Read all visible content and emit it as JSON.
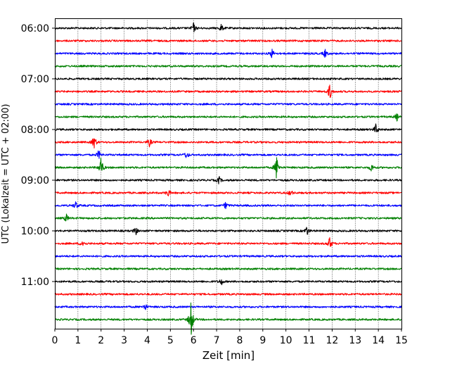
{
  "chart_data": {
    "type": "line",
    "title": "",
    "xlabel": "Zeit  [min]",
    "ylabel": "UTC (Lokalzeit = UTC + 02:00)",
    "xlim": [
      0,
      15
    ],
    "x_ticks": [
      "0",
      "1",
      "2",
      "3",
      "4",
      "5",
      "6",
      "7",
      "8",
      "9",
      "10",
      "11",
      "12",
      "13",
      "14",
      "15"
    ],
    "y_ticks": [
      "06:00",
      "07:00",
      "08:00",
      "09:00",
      "10:00",
      "11:00"
    ],
    "grid": "vertical dotted",
    "colors": [
      "#000000",
      "#ff0000",
      "#0000ff",
      "#008000"
    ],
    "series": [
      {
        "start": "06:00",
        "color": "#000000",
        "events": [
          {
            "x": 6.0,
            "amp": 2.0
          },
          {
            "x": 7.2,
            "amp": 1.5
          }
        ]
      },
      {
        "start": "06:15",
        "color": "#ff0000",
        "events": []
      },
      {
        "start": "06:30",
        "color": "#0000ff",
        "events": [
          {
            "x": 9.4,
            "amp": 1.8
          },
          {
            "x": 11.7,
            "amp": 1.6
          }
        ]
      },
      {
        "start": "06:45",
        "color": "#008000",
        "events": []
      },
      {
        "start": "07:00",
        "color": "#000000",
        "events": []
      },
      {
        "start": "07:15",
        "color": "#ff0000",
        "events": [
          {
            "x": 11.9,
            "amp": 3.2
          }
        ]
      },
      {
        "start": "07:30",
        "color": "#0000ff",
        "events": []
      },
      {
        "start": "07:45",
        "color": "#008000",
        "events": [
          {
            "x": 14.8,
            "amp": 1.5
          }
        ]
      },
      {
        "start": "08:00",
        "color": "#000000",
        "events": [
          {
            "x": 13.9,
            "amp": 2.2
          }
        ]
      },
      {
        "start": "08:15",
        "color": "#ff0000",
        "events": [
          {
            "x": 1.7,
            "amp": 3.0
          },
          {
            "x": 4.1,
            "amp": 1.6
          }
        ]
      },
      {
        "start": "08:30",
        "color": "#0000ff",
        "events": [
          {
            "x": 1.9,
            "amp": 1.8
          },
          {
            "x": 5.7,
            "amp": 1.5
          }
        ]
      },
      {
        "start": "08:45",
        "color": "#008000",
        "events": [
          {
            "x": 2.0,
            "amp": 4.5
          },
          {
            "x": 9.6,
            "amp": 5.0
          },
          {
            "x": 13.7,
            "amp": 1.6
          }
        ]
      },
      {
        "start": "09:00",
        "color": "#000000",
        "events": [
          {
            "x": 7.1,
            "amp": 1.5
          }
        ]
      },
      {
        "start": "09:15",
        "color": "#ff0000",
        "events": [
          {
            "x": 4.9,
            "amp": 1.6
          },
          {
            "x": 10.2,
            "amp": 1.4
          }
        ]
      },
      {
        "start": "09:30",
        "color": "#0000ff",
        "events": [
          {
            "x": 0.9,
            "amp": 1.6
          },
          {
            "x": 7.4,
            "amp": 1.4
          }
        ]
      },
      {
        "start": "09:45",
        "color": "#008000",
        "events": [
          {
            "x": 0.5,
            "amp": 1.6
          }
        ]
      },
      {
        "start": "10:00",
        "color": "#000000",
        "events": [
          {
            "x": 3.5,
            "amp": 1.6
          },
          {
            "x": 10.9,
            "amp": 2.0
          }
        ]
      },
      {
        "start": "10:15",
        "color": "#ff0000",
        "events": [
          {
            "x": 1.2,
            "amp": 1.6
          },
          {
            "x": 11.9,
            "amp": 2.6
          }
        ]
      },
      {
        "start": "10:30",
        "color": "#0000ff",
        "events": []
      },
      {
        "start": "10:45",
        "color": "#008000",
        "events": []
      },
      {
        "start": "11:00",
        "color": "#000000",
        "events": [
          {
            "x": 7.2,
            "amp": 1.4
          }
        ]
      },
      {
        "start": "11:15",
        "color": "#ff0000",
        "events": []
      },
      {
        "start": "11:30",
        "color": "#0000ff",
        "events": [
          {
            "x": 3.9,
            "amp": 1.4
          }
        ]
      },
      {
        "start": "11:45",
        "color": "#008000",
        "events": [
          {
            "x": 5.9,
            "amp": 7.5
          }
        ]
      }
    ]
  }
}
